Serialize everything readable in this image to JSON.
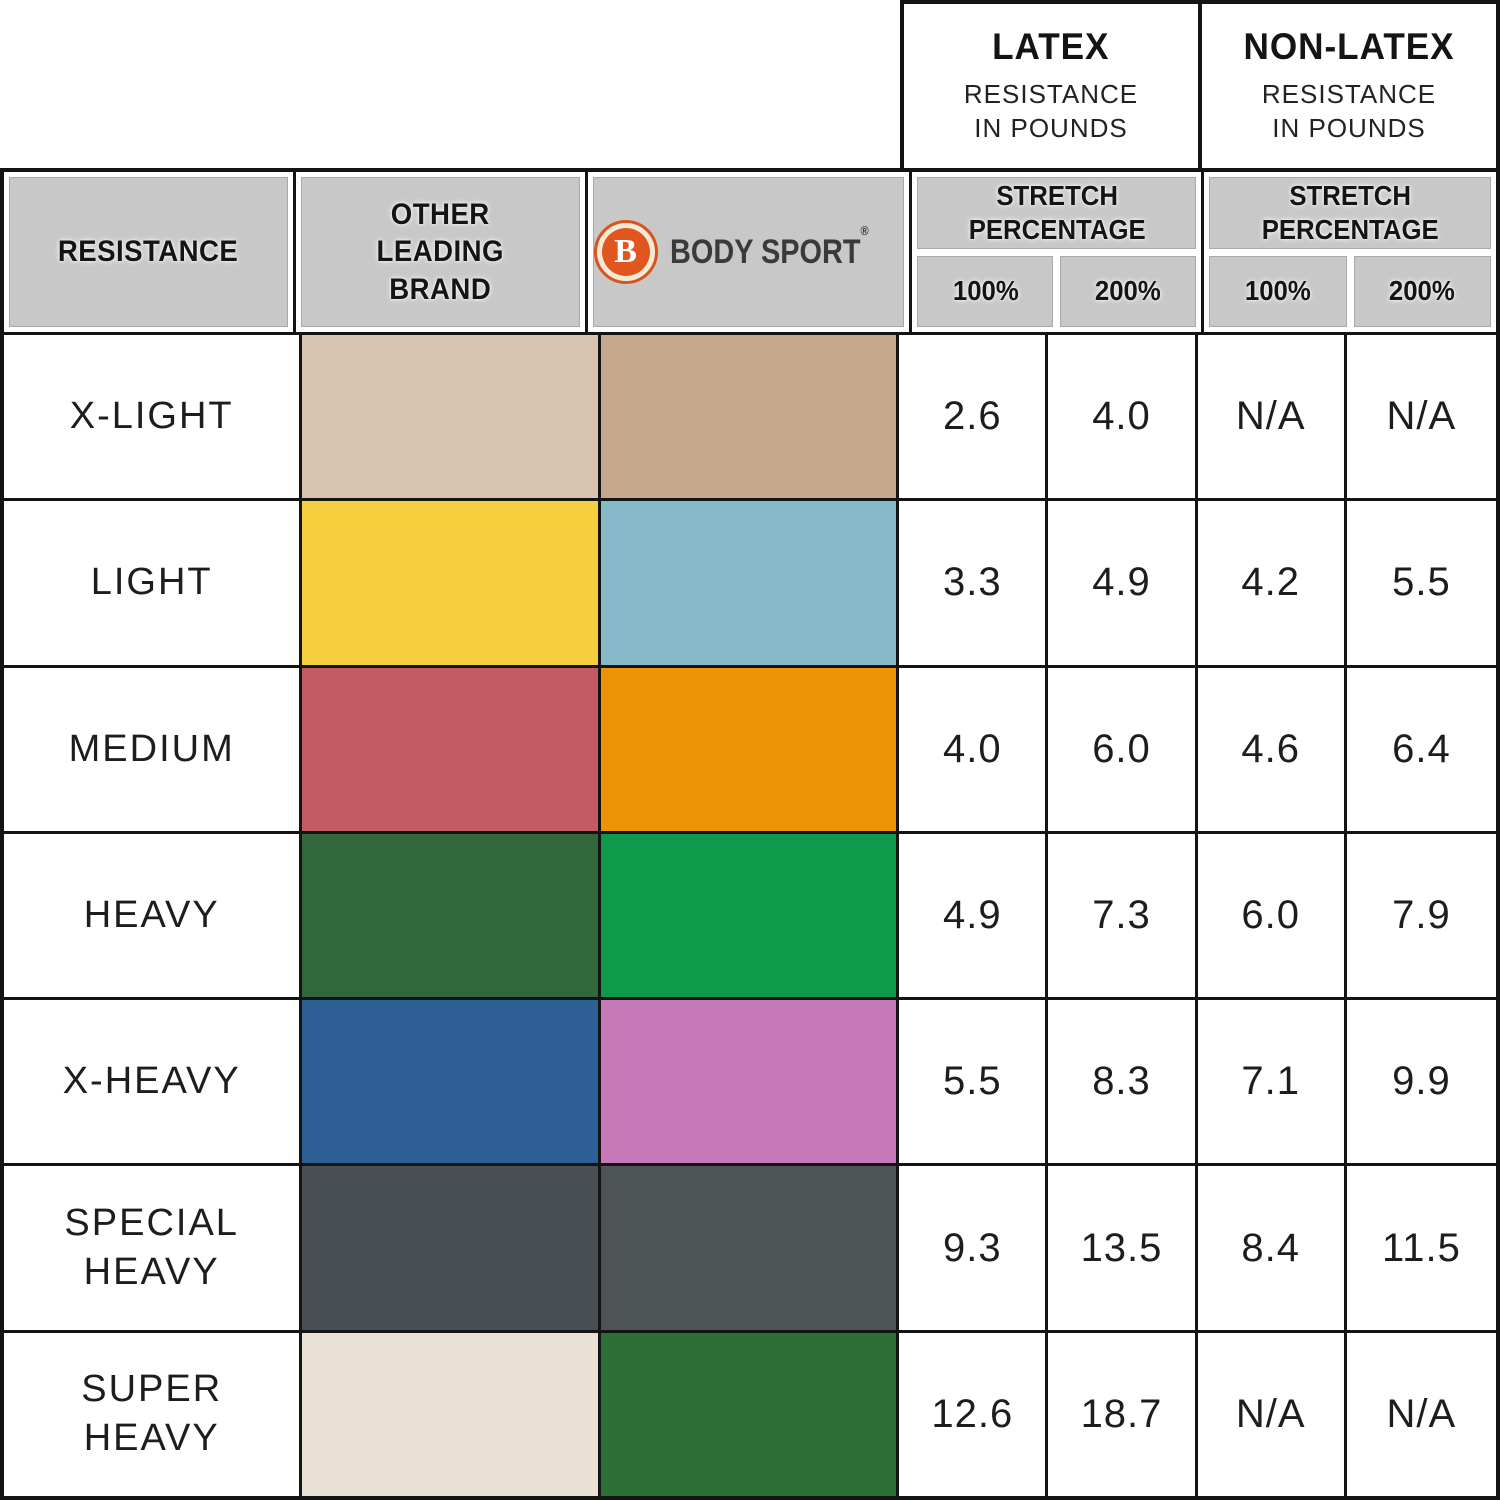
{
  "top_header": {
    "latex": {
      "title": "LATEX",
      "subtitle": "RESISTANCE\nIN POUNDS"
    },
    "non_latex": {
      "title": "NON-LATEX",
      "subtitle": "RESISTANCE\nIN POUNDS"
    }
  },
  "header": {
    "resistance_label": "RESISTANCE",
    "other_brand_label": "OTHER\nLEADING\nBRAND",
    "brand": {
      "logo_letter": "B",
      "wordmark": "BODY SPORT",
      "registered": "®"
    },
    "latex_group": {
      "stretch_label": "STRETCH\nPERCENTAGE",
      "pct_100": "100%",
      "pct_200": "200%"
    },
    "non_latex_group": {
      "stretch_label": "STRETCH\nPERCENTAGE",
      "pct_100": "100%",
      "pct_200": "200%"
    }
  },
  "rows": [
    {
      "label": "X-LIGHT",
      "other_color": "#d9c4af",
      "bodysport_color": "#c4a98f",
      "latex_100": "2.6",
      "latex_200": "4.0",
      "nonlatex_100": "N/A",
      "nonlatex_200": "N/A"
    },
    {
      "label": "LIGHT",
      "other_color": "#f6cf3e",
      "bodysport_color": "#87b9c9",
      "latex_100": "3.3",
      "latex_200": "4.9",
      "nonlatex_100": "4.2",
      "nonlatex_200": "5.5"
    },
    {
      "label": "MEDIUM",
      "other_color": "#c25b64",
      "bodysport_color": "#ef9306",
      "latex_100": "4.0",
      "latex_200": "6.0",
      "nonlatex_100": "4.6",
      "nonlatex_200": "6.4"
    },
    {
      "label": "HEAVY",
      "other_color": "#30683b",
      "bodysport_color": "#0e9a4a",
      "latex_100": "4.9",
      "latex_200": "7.3",
      "nonlatex_100": "6.0",
      "nonlatex_200": "7.9"
    },
    {
      "label": "X-HEAVY",
      "other_color": "#2d5f95",
      "bodysport_color": "#c778b8",
      "latex_100": "5.5",
      "latex_200": "8.3",
      "nonlatex_100": "7.1",
      "nonlatex_200": "9.9"
    },
    {
      "label": "SPECIAL\nHEAVY",
      "other_color": "#474f52",
      "bodysport_color": "#4e5356",
      "latex_100": "9.3",
      "latex_200": "13.5",
      "nonlatex_100": "8.4",
      "nonlatex_200": "11.5"
    },
    {
      "label": "SUPER\nHEAVY",
      "other_color": "#e8e1d4",
      "bodysport_color": "#2c6f37",
      "latex_100": "12.6",
      "latex_200": "18.7",
      "nonlatex_100": "N/A",
      "nonlatex_200": "N/A"
    }
  ],
  "colors": {
    "header_bg": "#c8c8c8",
    "grid_line": "#141414",
    "logo_orange": "#e0561e",
    "logo_ring_cream": "#f3ead6",
    "wordmark_gray": "#3a3a3a"
  },
  "chart_data": {
    "type": "table",
    "title": "Body Sport vs Other Leading Brand resistance band comparison",
    "units": "resistance in pounds",
    "columns": [
      "RESISTANCE",
      "OTHER LEADING BRAND (color)",
      "BODY SPORT (color)",
      "LATEX 100% STRETCH",
      "LATEX 200% STRETCH",
      "NON-LATEX 100% STRETCH",
      "NON-LATEX 200% STRETCH"
    ],
    "rows": [
      [
        "X-LIGHT",
        "#d9c4af",
        "#c4a98f",
        2.6,
        4.0,
        "N/A",
        "N/A"
      ],
      [
        "LIGHT",
        "#f6cf3e",
        "#87b9c9",
        3.3,
        4.9,
        4.2,
        5.5
      ],
      [
        "MEDIUM",
        "#c25b64",
        "#ef9306",
        4.0,
        6.0,
        4.6,
        6.4
      ],
      [
        "HEAVY",
        "#30683b",
        "#0e9a4a",
        4.9,
        7.3,
        6.0,
        7.9
      ],
      [
        "X-HEAVY",
        "#2d5f95",
        "#c778b8",
        5.5,
        8.3,
        7.1,
        9.9
      ],
      [
        "SPECIAL HEAVY",
        "#474f52",
        "#4e5356",
        9.3,
        13.5,
        8.4,
        11.5
      ],
      [
        "SUPER HEAVY",
        "#e8e1d4",
        "#2c6f37",
        12.6,
        18.7,
        "N/A",
        "N/A"
      ]
    ]
  }
}
